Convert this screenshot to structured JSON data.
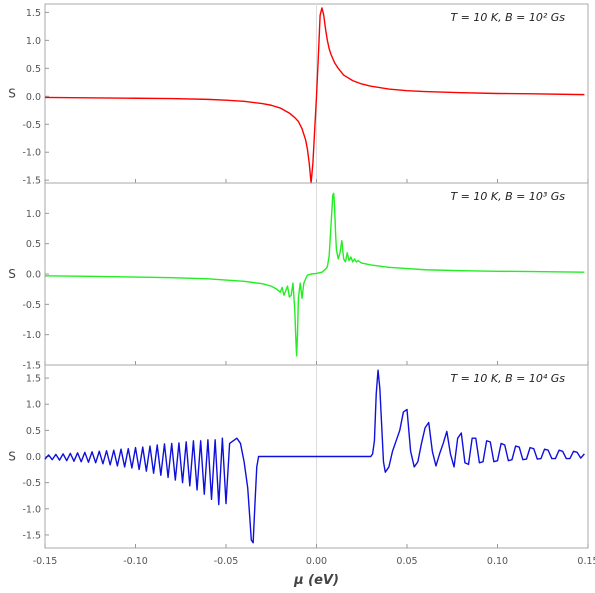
{
  "chart_data": {
    "type": "line",
    "xlabel": "μ (eV)",
    "xlim": [
      -0.15,
      0.15
    ],
    "x_ticks": [
      "-0.15",
      "-0.10",
      "-0.05",
      "0.00",
      "0.05",
      "0.10",
      "0.15"
    ],
    "x_tick_values": [
      -0.15,
      -0.1,
      -0.05,
      0.0,
      0.05,
      0.1,
      0.15
    ],
    "panels": [
      {
        "ylabel": "S",
        "annotation": "T = 10 K, B = 10² Gs",
        "color": "#ff0000",
        "ylim": [
          -1.55,
          1.65
        ],
        "y_ticks": [
          "1.5",
          "1.0",
          "0.5",
          "0.0",
          "-0.5",
          "-1.0",
          "-1.5"
        ],
        "y_tick_values": [
          1.5,
          1.0,
          0.5,
          0.0,
          -0.5,
          -1.0,
          -1.5
        ],
        "series": [
          {
            "x": [
              -0.15,
              -0.12,
              -0.1,
              -0.08,
              -0.06,
              -0.05,
              -0.04,
              -0.03,
              -0.025,
              -0.02,
              -0.015,
              -0.012,
              -0.01,
              -0.008,
              -0.006,
              -0.005,
              -0.004,
              -0.003,
              -0.002,
              -0.001,
              0.0,
              0.001,
              0.002,
              0.003,
              0.004,
              0.005,
              0.006,
              0.007,
              0.008,
              0.01,
              0.012,
              0.015,
              0.02,
              0.025,
              0.03,
              0.04,
              0.05,
              0.06,
              0.08,
              0.1,
              0.12,
              0.148
            ],
            "y": [
              -0.02,
              -0.03,
              -0.035,
              -0.04,
              -0.055,
              -0.07,
              -0.09,
              -0.13,
              -0.16,
              -0.21,
              -0.3,
              -0.38,
              -0.45,
              -0.58,
              -0.78,
              -0.95,
              -1.2,
              -1.55,
              -1.2,
              -0.6,
              0.0,
              0.7,
              1.45,
              1.58,
              1.45,
              1.2,
              1.0,
              0.85,
              0.75,
              0.6,
              0.5,
              0.38,
              0.28,
              0.22,
              0.18,
              0.13,
              0.1,
              0.085,
              0.065,
              0.05,
              0.045,
              0.03
            ]
          }
        ]
      },
      {
        "ylabel": "S",
        "annotation": "T = 10 K, B = 10³ Gs",
        "color": "#22ee22",
        "ylim": [
          -1.5,
          1.5
        ],
        "y_ticks": [
          "1.0",
          "0.5",
          "0.0",
          "-0.5",
          "-1.0",
          "-1.5"
        ],
        "y_tick_values": [
          1.0,
          0.5,
          0.0,
          -0.5,
          -1.0,
          -1.5
        ],
        "series": [
          {
            "x": [
              -0.15,
              -0.12,
              -0.1,
              -0.08,
              -0.06,
              -0.04,
              -0.03,
              -0.025,
              -0.022,
              -0.02,
              -0.019,
              -0.018,
              -0.016,
              -0.015,
              -0.014,
              -0.013,
              -0.012,
              -0.0115,
              -0.011,
              -0.0105,
              -0.01,
              -0.009,
              -0.008,
              -0.007,
              -0.006,
              -0.005,
              -0.003,
              0.0,
              0.003,
              0.005,
              0.006,
              0.007,
              0.008,
              0.009,
              0.0095,
              0.01,
              0.0105,
              0.011,
              0.012,
              0.013,
              0.014,
              0.015,
              0.016,
              0.017,
              0.018,
              0.019,
              0.02,
              0.021,
              0.022,
              0.023,
              0.025,
              0.03,
              0.04,
              0.05,
              0.06,
              0.08,
              0.1,
              0.12,
              0.148
            ],
            "y": [
              -0.03,
              -0.04,
              -0.05,
              -0.06,
              -0.08,
              -0.12,
              -0.16,
              -0.2,
              -0.25,
              -0.3,
              -0.22,
              -0.35,
              -0.2,
              -0.38,
              -0.35,
              -0.15,
              -0.6,
              -1.0,
              -1.35,
              -1.0,
              -0.4,
              -0.15,
              -0.4,
              -0.15,
              -0.08,
              -0.02,
              0.0,
              0.01,
              0.03,
              0.08,
              0.12,
              0.3,
              0.8,
              1.3,
              1.33,
              1.1,
              0.7,
              0.4,
              0.25,
              0.35,
              0.55,
              0.25,
              0.2,
              0.35,
              0.22,
              0.28,
              0.2,
              0.25,
              0.2,
              0.22,
              0.18,
              0.15,
              0.11,
              0.09,
              0.07,
              0.055,
              0.045,
              0.04,
              0.03
            ]
          }
        ]
      },
      {
        "ylabel": "S",
        "annotation": "T = 10 K, B = 10⁴ Gs",
        "color": "#1010dd",
        "ylim": [
          -1.75,
          1.75
        ],
        "y_ticks": [
          "1.5",
          "1.0",
          "0.5",
          "0.0",
          "-0.5",
          "-1.0",
          "-1.5"
        ],
        "y_tick_values": [
          1.5,
          1.0,
          0.5,
          0.0,
          -0.5,
          -1.0,
          -1.5
        ],
        "series": [
          {
            "x": [
              -0.15,
              -0.148,
              -0.146,
              -0.144,
              -0.142,
              -0.14,
              -0.138,
              -0.136,
              -0.134,
              -0.132,
              -0.13,
              -0.128,
              -0.126,
              -0.124,
              -0.122,
              -0.12,
              -0.118,
              -0.116,
              -0.114,
              -0.112,
              -0.11,
              -0.108,
              -0.106,
              -0.104,
              -0.102,
              -0.1,
              -0.098,
              -0.096,
              -0.094,
              -0.092,
              -0.09,
              -0.088,
              -0.086,
              -0.084,
              -0.082,
              -0.08,
              -0.078,
              -0.076,
              -0.074,
              -0.072,
              -0.07,
              -0.068,
              -0.066,
              -0.064,
              -0.062,
              -0.06,
              -0.058,
              -0.056,
              -0.054,
              -0.052,
              -0.05,
              -0.048,
              -0.046,
              -0.044,
              -0.042,
              -0.04,
              -0.038,
              -0.037,
              -0.036,
              -0.035,
              -0.034,
              -0.033,
              -0.032,
              -0.03,
              -0.02,
              0.0,
              0.02,
              0.03,
              0.031,
              0.032,
              0.033,
              0.034,
              0.035,
              0.036,
              0.037,
              0.038,
              0.04,
              0.042,
              0.044,
              0.046,
              0.048,
              0.05,
              0.052,
              0.054,
              0.056,
              0.058,
              0.06,
              0.062,
              0.064,
              0.066,
              0.068,
              0.07,
              0.072,
              0.074,
              0.076,
              0.078,
              0.08,
              0.082,
              0.084,
              0.086,
              0.088,
              0.09,
              0.092,
              0.094,
              0.096,
              0.098,
              0.1,
              0.102,
              0.104,
              0.106,
              0.108,
              0.11,
              0.112,
              0.114,
              0.116,
              0.118,
              0.12,
              0.122,
              0.124,
              0.126,
              0.128,
              0.13,
              0.132,
              0.134,
              0.136,
              0.138,
              0.14,
              0.142,
              0.144,
              0.146,
              0.148
            ],
            "y": [
              -0.05,
              0.03,
              -0.06,
              0.04,
              -0.07,
              0.05,
              -0.08,
              0.06,
              -0.09,
              0.07,
              -0.1,
              0.08,
              -0.11,
              0.09,
              -0.12,
              0.1,
              -0.14,
              0.11,
              -0.16,
              0.12,
              -0.18,
              0.14,
              -0.2,
              0.15,
              -0.22,
              0.17,
              -0.25,
              0.18,
              -0.28,
              0.2,
              -0.32,
              0.22,
              -0.36,
              0.24,
              -0.4,
              0.25,
              -0.45,
              0.26,
              -0.5,
              0.28,
              -0.56,
              0.3,
              -0.64,
              0.3,
              -0.72,
              0.32,
              -0.82,
              0.32,
              -0.92,
              0.35,
              -0.9,
              0.25,
              0.3,
              0.35,
              0.25,
              -0.1,
              -0.6,
              -1.1,
              -1.6,
              -1.65,
              -0.9,
              -0.2,
              0.0,
              0.0,
              0.0,
              0.0,
              0.0,
              0.0,
              0.05,
              0.3,
              1.2,
              1.65,
              1.3,
              0.6,
              -0.1,
              -0.3,
              -0.2,
              0.1,
              0.3,
              0.5,
              0.85,
              0.9,
              0.1,
              -0.2,
              -0.1,
              0.25,
              0.55,
              0.65,
              0.1,
              -0.18,
              0.05,
              0.25,
              0.48,
              0.05,
              -0.2,
              0.35,
              0.45,
              -0.12,
              -0.15,
              0.35,
              0.35,
              -0.12,
              -0.1,
              0.3,
              0.28,
              -0.1,
              -0.08,
              0.25,
              0.22,
              -0.08,
              -0.06,
              0.2,
              0.18,
              -0.06,
              -0.05,
              0.17,
              0.15,
              -0.05,
              -0.04,
              0.14,
              0.12,
              -0.04,
              -0.04,
              0.12,
              0.1,
              -0.04,
              -0.04,
              0.1,
              0.08,
              -0.03,
              0.05
            ]
          }
        ]
      }
    ]
  }
}
